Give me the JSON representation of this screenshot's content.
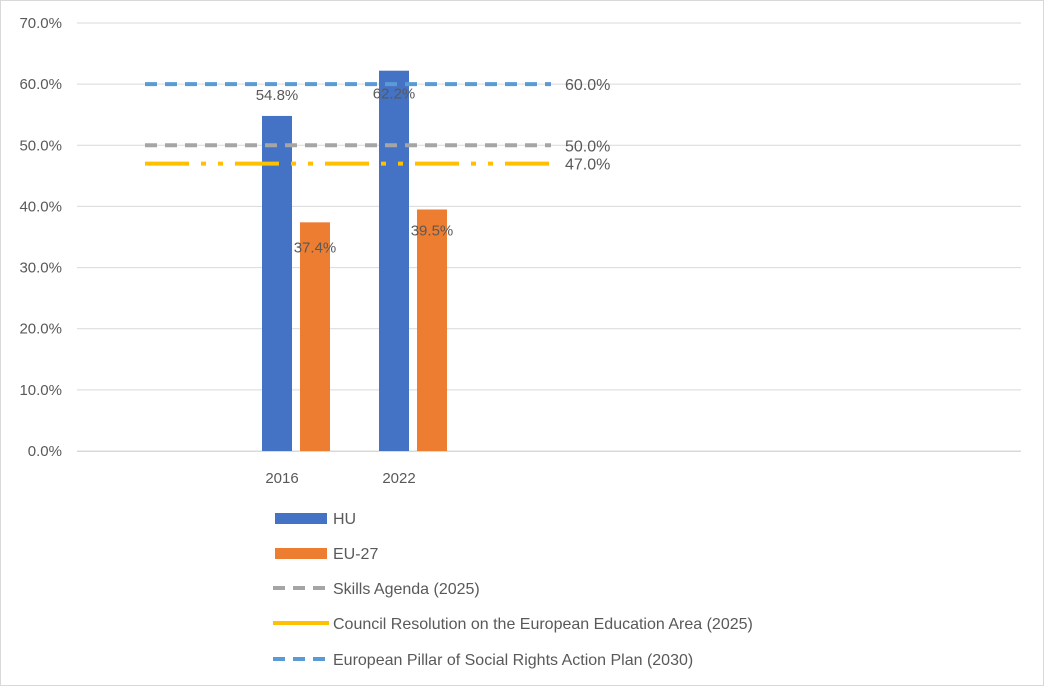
{
  "chart_data": {
    "type": "bar",
    "categories": [
      "2016",
      "2022"
    ],
    "series": [
      {
        "name": "HU",
        "values": [
          54.8,
          62.2
        ],
        "labels": [
          "54.8%",
          "62.2%"
        ],
        "color": "#4472c4"
      },
      {
        "name": "EU-27",
        "values": [
          37.4,
          39.5
        ],
        "labels": [
          "37.4%",
          "39.5%"
        ],
        "color": "#ed7d31"
      }
    ],
    "targets": [
      {
        "name": "Skills Agenda (2025)",
        "value": 50.0,
        "label": "50.0%",
        "color": "#a5a5a5",
        "style": "dashed"
      },
      {
        "name": "Council Resolution on the European Education Area (2025)",
        "value": 47.0,
        "label": "47.0%",
        "color": "#ffc000",
        "style": "dash-dot-dot"
      },
      {
        "name": "European Pillar of Social Rights Action Plan (2030)",
        "value": 60.0,
        "label": "60.0%",
        "color": "#5b9bd5",
        "style": "dashed"
      }
    ],
    "yticks": [
      "0.0%",
      "10.0%",
      "20.0%",
      "30.0%",
      "40.0%",
      "50.0%",
      "60.0%",
      "70.0%"
    ],
    "ylim": [
      0,
      70
    ],
    "grid": true,
    "legend_position": "bottom",
    "title": "",
    "xlabel": "",
    "ylabel": ""
  }
}
